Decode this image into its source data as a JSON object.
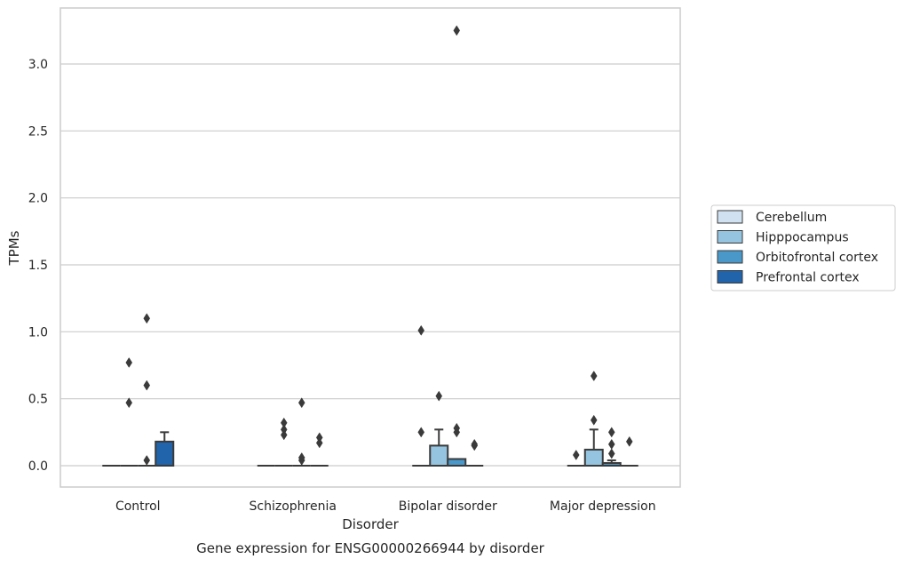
{
  "chart_data": {
    "type": "box",
    "title": "",
    "caption": "Gene expression for ENSG00000266944 by disorder",
    "xlabel": "Disorder",
    "ylabel": "TPMs",
    "ylim": [
      -0.16,
      3.42
    ],
    "yticks": [
      0.0,
      0.5,
      1.0,
      1.5,
      2.0,
      2.5,
      3.0
    ],
    "ytick_labels": [
      "0.0",
      "0.5",
      "1.0",
      "1.5",
      "2.0",
      "2.5",
      "3.0"
    ],
    "grid": "horizontal",
    "legend_position": "right",
    "categories": [
      "Control",
      "Schizophrenia",
      "Bipolar disorder",
      "Major depression"
    ],
    "series": [
      {
        "name": "Cerebellum",
        "color": "#d0e1f2",
        "boxes": [
          {
            "q1": 0,
            "median": 0,
            "q3": 0,
            "whisker_low": 0,
            "whisker_high": 0,
            "outliers": []
          },
          {
            "q1": 0,
            "median": 0,
            "q3": 0,
            "whisker_low": 0,
            "whisker_high": 0,
            "outliers": []
          },
          {
            "q1": 0,
            "median": 0,
            "q3": 0,
            "whisker_low": 0,
            "whisker_high": 0,
            "outliers": [
              0.25,
              1.01
            ]
          },
          {
            "q1": 0,
            "median": 0,
            "q3": 0,
            "whisker_low": 0,
            "whisker_high": 0,
            "outliers": [
              0.08
            ]
          }
        ]
      },
      {
        "name": "Hipppocampus",
        "color": "#94c4df",
        "boxes": [
          {
            "q1": 0,
            "median": 0,
            "q3": 0,
            "whisker_low": 0,
            "whisker_high": 0,
            "outliers": [
              0.47,
              0.77
            ]
          },
          {
            "q1": 0,
            "median": 0,
            "q3": 0,
            "whisker_low": 0,
            "whisker_high": 0,
            "outliers": [
              0.23,
              0.27,
              0.32
            ]
          },
          {
            "q1": 0,
            "median": 0,
            "q3": 0.15,
            "whisker_low": 0,
            "whisker_high": 0.27,
            "outliers": [
              0.52
            ]
          },
          {
            "q1": 0,
            "median": 0,
            "q3": 0.12,
            "whisker_low": 0,
            "whisker_high": 0.27,
            "outliers": [
              0.34,
              0.67
            ]
          }
        ]
      },
      {
        "name": "Orbitofrontal cortex",
        "color": "#4a98c9",
        "boxes": [
          {
            "q1": 0,
            "median": 0,
            "q3": 0,
            "whisker_low": 0,
            "whisker_high": 0,
            "outliers": [
              0.04,
              0.6,
              1.1
            ]
          },
          {
            "q1": 0,
            "median": 0,
            "q3": 0,
            "whisker_low": 0,
            "whisker_high": 0,
            "outliers": [
              0.04,
              0.06,
              0.47
            ]
          },
          {
            "q1": 0,
            "median": 0,
            "q3": 0.05,
            "whisker_low": 0,
            "whisker_high": 0.05,
            "outliers": [
              0.25,
              0.28,
              3.25
            ]
          },
          {
            "q1": 0,
            "median": 0,
            "q3": 0.02,
            "whisker_low": 0,
            "whisker_high": 0.04,
            "outliers": [
              0.09,
              0.16,
              0.25
            ]
          }
        ]
      },
      {
        "name": "Prefrontal cortex",
        "color": "#2164ab",
        "boxes": [
          {
            "q1": 0,
            "median": 0,
            "q3": 0.18,
            "whisker_low": 0,
            "whisker_high": 0.25,
            "outliers": []
          },
          {
            "q1": 0,
            "median": 0,
            "q3": 0,
            "whisker_low": 0,
            "whisker_high": 0,
            "outliers": [
              0.17,
              0.21
            ]
          },
          {
            "q1": 0,
            "median": 0,
            "q3": 0,
            "whisker_low": 0,
            "whisker_high": 0,
            "outliers": [
              0.15,
              0.16
            ]
          },
          {
            "q1": 0,
            "median": 0,
            "q3": 0,
            "whisker_low": 0,
            "whisker_high": 0,
            "outliers": [
              0.18
            ]
          }
        ]
      }
    ]
  }
}
